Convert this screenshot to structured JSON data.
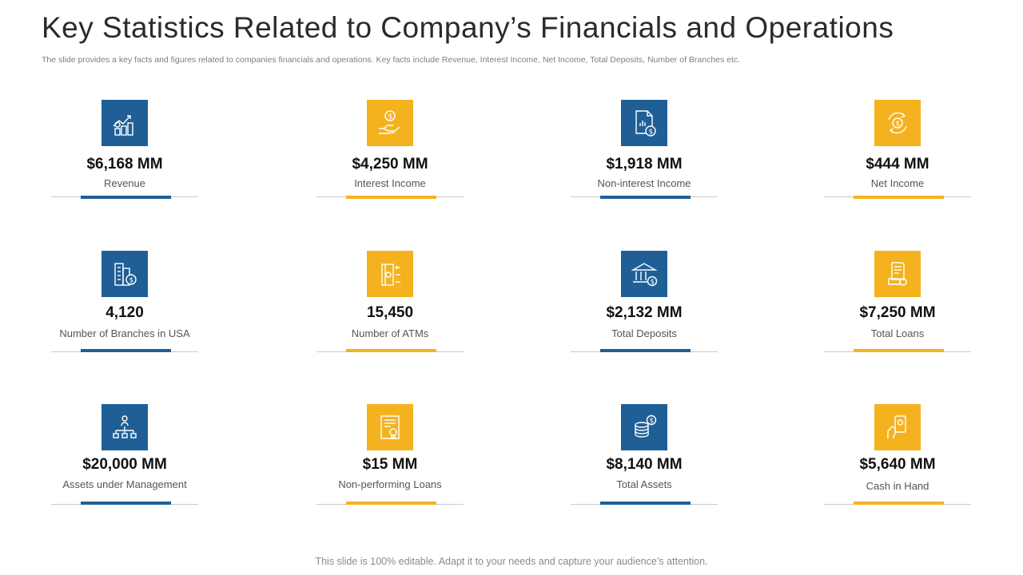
{
  "title": "Key Statistics Related to Company’s Financials and Operations",
  "subtitle": "The slide provides a key facts and figures related to companies financials and operations. Key facts include Revenue, Interest Income, Net Income, Total Deposits, Number of Branches etc.",
  "colors": {
    "blue": "#1f5f96",
    "yellow": "#f5b21f",
    "rule": "#c9c9c9"
  },
  "stats": [
    {
      "value": "$6,168 MM",
      "label": "Revenue",
      "icon": "revenue-growth-icon",
      "color": "#1f5f96"
    },
    {
      "value": "$4,250 MM",
      "label": "Interest Income",
      "icon": "hand-coin-icon",
      "color": "#f5b21f"
    },
    {
      "value": "$1,918 MM",
      "label": "Non-interest Income",
      "icon": "document-dollar-icon",
      "color": "#1f5f96"
    },
    {
      "value": "$444 MM",
      "label": "Net Income",
      "icon": "dollar-cycle-icon",
      "color": "#f5b21f"
    },
    {
      "value": "4,120",
      "label": "Number of Branches  in USA",
      "icon": "building-dollar-icon",
      "color": "#1f5f96"
    },
    {
      "value": "15,450",
      "label": "Number of ATMs",
      "icon": "atm-icon",
      "color": "#f5b21f"
    },
    {
      "value": "$2,132 MM",
      "label": "Total Deposits",
      "icon": "bank-dollar-icon",
      "color": "#1f5f96"
    },
    {
      "value": "$7,250 MM",
      "label": "Total Loans",
      "icon": "loan-document-icon",
      "color": "#f5b21f"
    },
    {
      "value": "$20,000 MM",
      "label": "Assets under Management",
      "icon": "org-chart-icon",
      "color": "#1f5f96"
    },
    {
      "value": "$15 MM",
      "label": "Non-performing Loans",
      "icon": "certificate-icon",
      "color": "#f5b21f"
    },
    {
      "value": "$8,140 MM",
      "label": "Total Assets",
      "icon": "coin-stack-icon",
      "color": "#1f5f96"
    },
    {
      "value": "$5,640 MM",
      "label": "Cash in Hand",
      "icon": "hand-phone-cash-icon",
      "color": "#f5b21f"
    }
  ],
  "footer": "This slide is 100% editable. Adapt it to your needs and capture your audience’s attention."
}
